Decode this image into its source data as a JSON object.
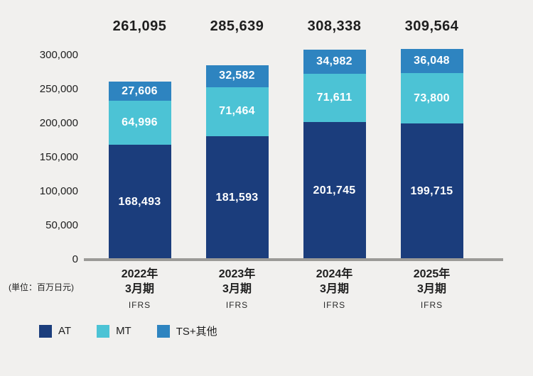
{
  "chart_data": {
    "type": "bar",
    "stacked": true,
    "unit_label": "(単位：百万日元)",
    "categories": [
      {
        "line1": "2022年",
        "line2": "3月期",
        "standard": "IFRS"
      },
      {
        "line1": "2023年",
        "line2": "3月期",
        "standard": "IFRS"
      },
      {
        "line1": "2024年",
        "line2": "3月期",
        "standard": "IFRS"
      },
      {
        "line1": "2025年",
        "line2": "3月期",
        "standard": "IFRS"
      }
    ],
    "series": [
      {
        "name": "AT",
        "color": "#1b3d7c",
        "values": [
          168493,
          181593,
          201745,
          199715
        ]
      },
      {
        "name": "MT",
        "color": "#4cc3d5",
        "values": [
          64996,
          71464,
          71611,
          73800
        ]
      },
      {
        "name": "TS+其他",
        "color": "#2e84c0",
        "values": [
          27606,
          32582,
          34982,
          36048
        ]
      }
    ],
    "totals": [
      261095,
      285639,
      308338,
      309564
    ],
    "y_axis": {
      "min": 0,
      "max": 300000,
      "tick_step": 50000,
      "ticks": [
        0,
        50000,
        100000,
        150000,
        200000,
        250000,
        300000
      ]
    },
    "legend_position": "bottom-left",
    "grid": false,
    "colors": {
      "background": "#f1f0ee",
      "axis_line": "#9b9a97",
      "text": "#1e1e1e"
    }
  }
}
